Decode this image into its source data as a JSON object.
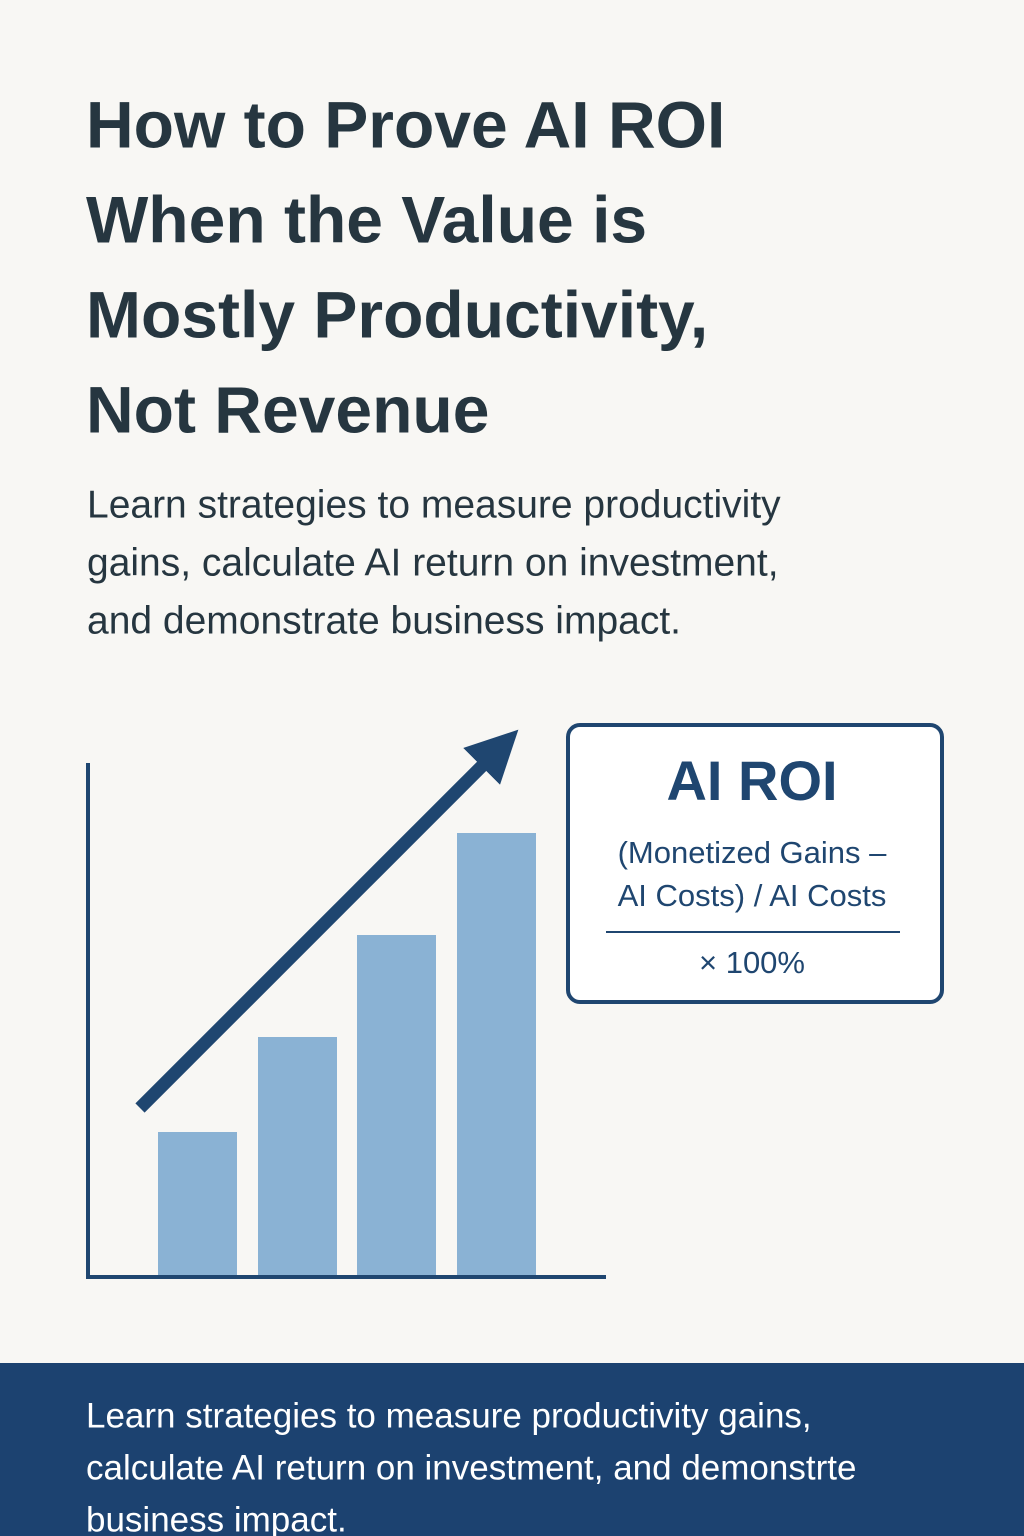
{
  "header": {
    "title_lines": [
      "How to Prove AI ROI",
      "When the Value is",
      "Mostly Productivity,",
      "Not Revenue"
    ],
    "subtitle_lines": [
      "Learn strategies to measure productivity",
      "gains, calculate AI return on investment,",
      "and demonstrate business impact."
    ]
  },
  "formula": {
    "title": "AI ROI",
    "lines": [
      "(Monetized Gains –",
      "AI Costs) / AI Costs"
    ],
    "multiplier": "× 100%"
  },
  "footer": {
    "lines": [
      "Learn strategies to measure productivity gains,",
      "calculate AI return on investment, and demonstrte",
      "business impact."
    ]
  }
}
